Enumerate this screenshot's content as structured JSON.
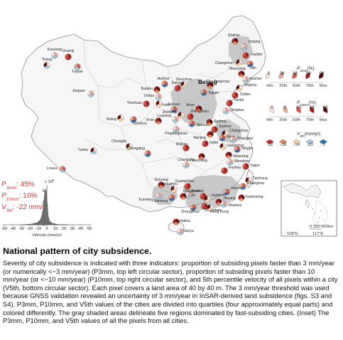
{
  "map": {
    "capital": "Beijing",
    "cities": [
      {
        "name": "Karamay"
      },
      {
        "name": "Urumqi"
      },
      {
        "name": "Yining"
      },
      {
        "name": "Turpan"
      },
      {
        "name": "Qiqihar"
      },
      {
        "name": "Daqing"
      },
      {
        "name": "Harbin"
      },
      {
        "name": "Changchun"
      },
      {
        "name": "Jilin"
      },
      {
        "name": "Shenyang"
      },
      {
        "name": "Anshan"
      },
      {
        "name": "Dalian"
      },
      {
        "name": "Yingkou"
      },
      {
        "name": "Huhhot"
      },
      {
        "name": "Baotou"
      },
      {
        "name": "Ordos"
      },
      {
        "name": "Datong"
      },
      {
        "name": "Shuozhou"
      },
      {
        "name": "Tianjin"
      },
      {
        "name": "Tangshan"
      },
      {
        "name": "Jiuquan"
      },
      {
        "name": "Yinchuan"
      },
      {
        "name": "Yulin"
      },
      {
        "name": "Taiyuan"
      },
      {
        "name": "Jinan"
      },
      {
        "name": "Qingdao"
      },
      {
        "name": "Yantai"
      },
      {
        "name": "Xining"
      },
      {
        "name": "Lanzhou"
      },
      {
        "name": "Xi'an"
      },
      {
        "name": "Luoyang"
      },
      {
        "name": "Zhengzhou"
      },
      {
        "name": "Jincheng"
      },
      {
        "name": "Jiaozuo"
      },
      {
        "name": "Xuzhou"
      },
      {
        "name": "Pingdingshan"
      },
      {
        "name": "Suzhou"
      },
      {
        "name": "Changzhou"
      },
      {
        "name": "Wuxi"
      },
      {
        "name": "Nanjing"
      },
      {
        "name": "Shanghai"
      },
      {
        "name": "Hefei"
      },
      {
        "name": "Hangzhou"
      },
      {
        "name": "Ningbo"
      },
      {
        "name": "Shaoxing"
      },
      {
        "name": "Wenzhou"
      },
      {
        "name": "Wuhan"
      },
      {
        "name": "Chengdu"
      },
      {
        "name": "Chongqing"
      },
      {
        "name": "Nanchang"
      },
      {
        "name": "Changsha"
      },
      {
        "name": "Fuzhou"
      },
      {
        "name": "Yushu"
      },
      {
        "name": "Lhasa"
      },
      {
        "name": "Guiyang"
      },
      {
        "name": "Kunming"
      },
      {
        "name": "Guangzhou"
      },
      {
        "name": "Liuzhou"
      },
      {
        "name": "Nanning"
      },
      {
        "name": "Yulin"
      },
      {
        "name": "Foshan"
      },
      {
        "name": "Dongguan"
      },
      {
        "name": "Huizhou"
      },
      {
        "name": "Xiamen"
      },
      {
        "name": "Jieyang"
      },
      {
        "name": "Shantou"
      },
      {
        "name": "Shenzhen"
      },
      {
        "name": "Hong Kong"
      },
      {
        "name": "Zhongshan"
      },
      {
        "name": "Haikou"
      },
      {
        "name": "Sanya"
      },
      {
        "name": "Taipei"
      },
      {
        "name": "Taichung"
      },
      {
        "name": "Changhua"
      },
      {
        "name": "Kaohsiung"
      }
    ]
  },
  "legend": {
    "p3mm": {
      "title_main": "P",
      "title_sub": "3mm",
      "title_unit": "(%)",
      "ticks": [
        "2",
        "28",
        "42",
        "59",
        "92"
      ],
      "quartiles": [
        "Min",
        "25th",
        "50th",
        "75th",
        "Max"
      ],
      "colors": [
        "#fbe3de",
        "#f2a593",
        "#d95a47",
        "#a61c1c",
        "#5e0a0a"
      ]
    },
    "p10mm": {
      "title_main": "P",
      "title_sub": "10mm",
      "title_unit": "(%)",
      "ticks": [
        "0",
        "5",
        "10",
        "19",
        "69"
      ],
      "quartiles": [
        "Min",
        "25th",
        "50th",
        "75th",
        "Max"
      ],
      "colors": [
        "#fbe3de",
        "#f2a593",
        "#d95a47",
        "#a61c1c",
        "#5e0a0a"
      ]
    },
    "v5th": {
      "title_main": "V",
      "title_sub": "5th",
      "title_unit": "(mm/yr)",
      "ticks": [
        "-52",
        "-19",
        "-14",
        "-10",
        "-1"
      ],
      "colors": [
        "#c0352b",
        "#e98a5c",
        "#f7d9a8",
        "#9cc9e3",
        "#2f6fb3"
      ]
    }
  },
  "histogram": {
    "p3mm_label": "P",
    "p3mm_sub": "3mm",
    "p3mm_value": ": 45%",
    "p10mm_label": "P",
    "p10mm_sub": "10mm",
    "p10mm_value": ": 16%",
    "v5th_label": "V",
    "v5th_sub": "5th",
    "v5th_value": ": -22 mm/yr",
    "y_exponent": "x 10",
    "y_exponent_power": "5",
    "y_ticks": [
      "0",
      "2",
      "4",
      "6"
    ],
    "x_ticks": [
      "-50",
      "-40",
      "-30",
      "-20",
      "-10",
      "0",
      "10",
      "20",
      "30",
      "40",
      "50"
    ],
    "xlabel": "Velocity (mm/yr)"
  },
  "inset": {
    "scale_text": "0  250 500km",
    "lon_labels": [
      "108°E",
      "117°E"
    ]
  },
  "caption": {
    "title": "National pattern of city subsidence.",
    "body": "Severity of city subsidence is indicated with three indicators: proportion of subsiding pixels faster than 3 mm/year (or numerically <−3 mm/year) (P3mm, top left circular sector), proportion of subsiding pixels faster than 10 mm/year (or <−10 mm/year) (P10mm, top right circular sector), and 5th percentile velocity of all pixels within a city (V5th, bottom circular sector). Each pixel covers a land area of 40 by 40 m. The 3 mm/year threshold was used because GNSS validation revealed an uncertainty of 3 mm/year in InSAR-derived land subsidence (figs. S3 and S4). P3mm, P10mm, and V5th values of the cities are divided into quartiles (four approximately equal parts) and colored differently. The gray shaded areas delineate five regions dominated by fast-subsiding cities. (Inset) The P3mm, P10mm, and V5th values of all the pixels from all cities."
  }
}
